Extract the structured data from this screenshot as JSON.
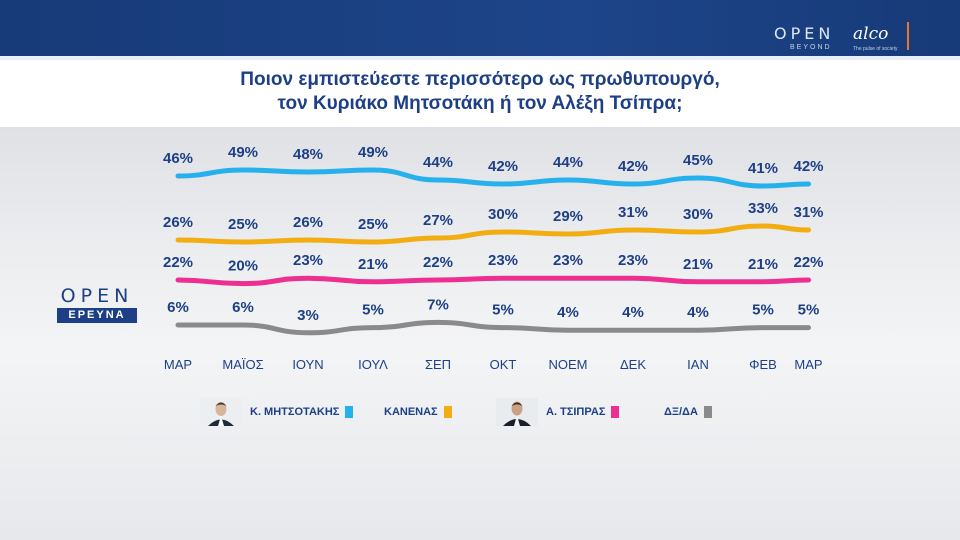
{
  "header": {
    "brand_open": "OPEN",
    "brand_beyond": "BEYOND",
    "brand_alco": "alco",
    "brand_alco_tagline": "The pulse of society"
  },
  "title_line1": "Ποιον εμπιστεύεστε περισσότερο ως πρωθυπουργό,",
  "title_line2": "τον Κυριάκο Μητσοτάκη ή τον Αλέξη Τσίπρα;",
  "badge": {
    "open": "OPEN",
    "erevna": "ΕΡΕΥΝΑ"
  },
  "colors": {
    "mitsotakis": "#27b1ec",
    "kanenas": "#f2ad12",
    "tsipras": "#ec2f91",
    "dxda": "#8a8a8a",
    "title": "#1d3f86"
  },
  "chart_data": {
    "type": "line",
    "title": "Ποιον εμπιστεύεστε περισσότερο ως πρωθυπουργό, τον Κυριάκο Μητσοτάκη ή τον Αλέξη Τσίπρα;",
    "categories": [
      "ΜΑΡ",
      "ΜΑΪΟΣ",
      "ΙΟΥΝ",
      "ΙΟΥΛ",
      "ΣΕΠ",
      "ΟΚΤ",
      "ΝΟΕΜ",
      "ΔΕΚ",
      "ΙΑΝ",
      "ΦΕΒ",
      "ΜΑΡ"
    ],
    "unit": "%",
    "grid": false,
    "legend_position": "bottom",
    "series": [
      {
        "name": "Κ. ΜΗΤΣΟΤΑΚΗΣ",
        "color": "#27b1ec",
        "values": [
          46,
          49,
          48,
          49,
          44,
          42,
          44,
          42,
          45,
          41,
          42
        ]
      },
      {
        "name": "ΚΑΝΕΝΑΣ",
        "color": "#f2ad12",
        "values": [
          26,
          25,
          26,
          25,
          27,
          30,
          29,
          31,
          30,
          33,
          31
        ]
      },
      {
        "name": "Α. ΤΣΙΠΡΑΣ",
        "color": "#ec2f91",
        "values": [
          22,
          20,
          23,
          21,
          22,
          23,
          23,
          23,
          21,
          21,
          22
        ]
      },
      {
        "name": "ΔΞ/ΔΑ",
        "color": "#8a8a8a",
        "values": [
          6,
          6,
          3,
          5,
          7,
          5,
          4,
          4,
          4,
          5,
          5
        ]
      }
    ]
  }
}
